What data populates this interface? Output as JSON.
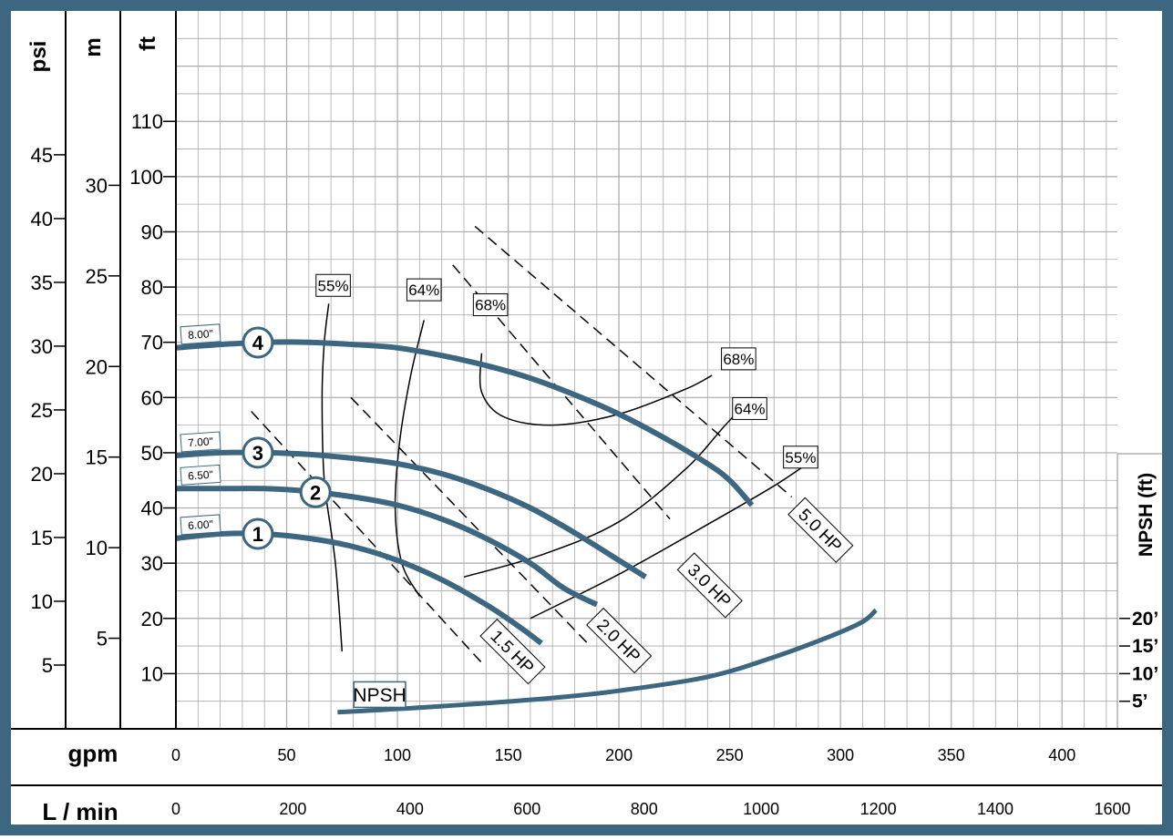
{
  "chart_data": {
    "type": "line",
    "axes": {
      "psi_label": "psi",
      "m_label": "m",
      "ft_label": "ft",
      "gpm_label": "gpm",
      "lmin_label": "L / min",
      "npsh_label": "NPSH (ft)",
      "psi_ticks": [
        "5",
        "10",
        "15",
        "20",
        "25",
        "30",
        "35",
        "40",
        "45"
      ],
      "m_ticks": [
        "5",
        "10",
        "15",
        "20",
        "25",
        "30"
      ],
      "ft_ticks": [
        "10",
        "20",
        "30",
        "40",
        "50",
        "60",
        "70",
        "80",
        "90",
        "100",
        "110"
      ],
      "gpm_ticks": [
        "0",
        "50",
        "100",
        "150",
        "200",
        "250",
        "300",
        "350",
        "400"
      ],
      "lmin_ticks": [
        "0",
        "200",
        "400",
        "600",
        "800",
        "1000",
        "1200",
        "1400",
        "1600"
      ],
      "npsh_ticks": [
        "5’",
        "10’",
        "15’",
        "20’"
      ],
      "xlim_gpm": [
        0,
        425
      ],
      "ylim_ft": [
        0,
        130
      ],
      "grid": true
    },
    "colors": {
      "curve": "#3d6680",
      "frame": "#3d6680",
      "grid": "#aaaaaa",
      "text": "#000000"
    },
    "impellers": [
      {
        "id": "1",
        "label": "6.00\"",
        "points": [
          [
            0,
            34.5
          ],
          [
            20,
            35.3
          ],
          [
            40,
            35.3
          ],
          [
            60,
            34.5
          ],
          [
            80,
            33
          ],
          [
            100,
            30.5
          ],
          [
            120,
            27
          ],
          [
            140,
            22.5
          ],
          [
            155,
            18.5
          ],
          [
            165,
            15.5
          ]
        ]
      },
      {
        "id": "2",
        "label": "6.50\"",
        "points": [
          [
            0,
            43.5
          ],
          [
            20,
            43.5
          ],
          [
            40,
            43.5
          ],
          [
            60,
            43
          ],
          [
            80,
            42
          ],
          [
            100,
            40.5
          ],
          [
            120,
            38
          ],
          [
            140,
            34.5
          ],
          [
            160,
            30
          ],
          [
            175,
            25.5
          ],
          [
            190,
            22.5
          ]
        ]
      },
      {
        "id": "3",
        "label": "7.00\"",
        "points": [
          [
            0,
            49.5
          ],
          [
            20,
            50
          ],
          [
            40,
            50
          ],
          [
            60,
            49.7
          ],
          [
            80,
            49
          ],
          [
            100,
            48
          ],
          [
            120,
            46.2
          ],
          [
            140,
            43.5
          ],
          [
            160,
            40
          ],
          [
            180,
            35.5
          ],
          [
            200,
            30.5
          ],
          [
            212,
            27.5
          ]
        ]
      },
      {
        "id": "4",
        "label": "8.00\"",
        "points": [
          [
            0,
            69
          ],
          [
            20,
            69.6
          ],
          [
            40,
            70
          ],
          [
            60,
            70
          ],
          [
            80,
            69.6
          ],
          [
            100,
            69
          ],
          [
            120,
            67.6
          ],
          [
            140,
            65.8
          ],
          [
            160,
            63.5
          ],
          [
            180,
            60.5
          ],
          [
            200,
            57
          ],
          [
            220,
            52.8
          ],
          [
            240,
            48
          ],
          [
            250,
            45
          ],
          [
            260,
            40.5
          ]
        ]
      }
    ],
    "efficiency": [
      {
        "label": "55%",
        "points": [
          [
            75,
            14
          ],
          [
            72,
            30
          ],
          [
            67,
            45
          ],
          [
            66,
            60
          ],
          [
            67,
            70
          ],
          [
            69,
            77
          ]
        ],
        "label_at": [
          71,
          80.3
        ]
      },
      {
        "label": "64%",
        "points": [
          [
            110,
            24
          ],
          [
            102,
            30
          ],
          [
            99,
            40
          ],
          [
            101,
            52
          ],
          [
            106,
            64
          ],
          [
            112,
            74
          ]
        ],
        "label_at": [
          112,
          79.5
        ]
      },
      {
        "label": "68%",
        "points": [
          [
            138,
            68
          ],
          [
            138,
            61
          ],
          [
            148,
            56.5
          ],
          [
            170,
            55
          ],
          [
            200,
            57
          ],
          [
            230,
            61.5
          ],
          [
            242,
            64
          ]
        ],
        "label_at_left": [
          142,
          76.8
        ],
        "label_at_right": [
          254,
          67
        ]
      },
      {
        "label": "64%",
        "points": [
          [
            130,
            27.5
          ],
          [
            165,
            31.5
          ],
          [
            200,
            37.5
          ],
          [
            230,
            47
          ],
          [
            248,
            55
          ],
          [
            260,
            60
          ]
        ],
        "label_at": [
          259,
          58
        ]
      },
      {
        "label": "55%",
        "points": [
          [
            160,
            20
          ],
          [
            200,
            28
          ],
          [
            240,
            37
          ],
          [
            270,
            44
          ],
          [
            285,
            48
          ]
        ],
        "label_at": [
          282,
          49.2
        ]
      }
    ],
    "horsepower": [
      {
        "label": "1.5 HP",
        "points": [
          [
            34,
            57.5
          ],
          [
            138,
            12
          ]
        ],
        "label_at": [
          152,
          14
        ]
      },
      {
        "label": "2.0 HP",
        "points": [
          [
            79,
            60
          ],
          [
            187,
            15
          ]
        ],
        "label_at": [
          200,
          16
        ]
      },
      {
        "label": "3.0 HP",
        "points": [
          [
            125,
            84
          ],
          [
            223,
            38
          ]
        ],
        "label_at": [
          241,
          26
        ]
      },
      {
        "label": "5.0 HP",
        "points": [
          [
            135,
            91
          ],
          [
            278,
            42
          ]
        ],
        "label_at": [
          291,
          36
        ]
      }
    ],
    "npsh": {
      "label": "NPSH",
      "points": [
        [
          73,
          3
        ],
        [
          120,
          4.1
        ],
        [
          170,
          5.6
        ],
        [
          200,
          6.9
        ],
        [
          240,
          9.4
        ],
        [
          270,
          13
        ],
        [
          295,
          16.7
        ],
        [
          310,
          19.4
        ],
        [
          316,
          21.5
        ]
      ],
      "label_at": [
        92,
        6.2
      ]
    }
  }
}
